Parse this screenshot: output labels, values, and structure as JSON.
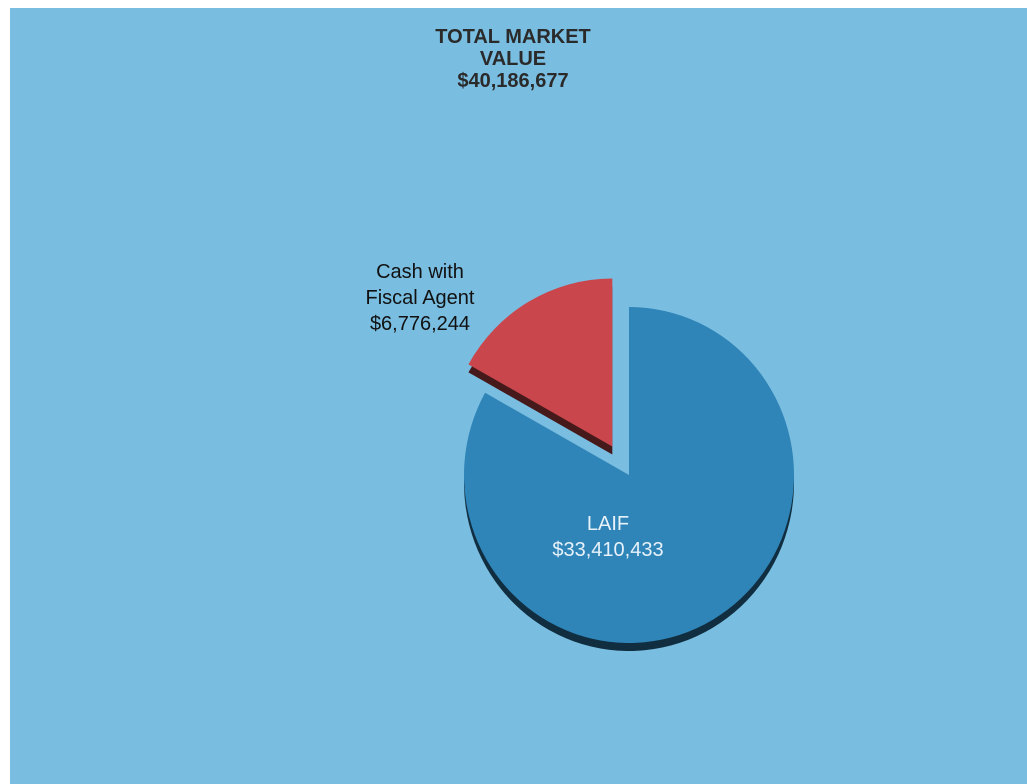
{
  "chart_data": {
    "type": "pie",
    "title_lines": [
      "TOTAL MARKET",
      "VALUE",
      "$40,186,677"
    ],
    "slices": [
      {
        "name": "LAIF",
        "label_lines": [
          "LAIF",
          "$33,410,433"
        ],
        "value": 33410433,
        "color": "#2f84b8",
        "exploded": false
      },
      {
        "name": "Cash with Fiscal Agent",
        "label_lines": [
          "Cash with",
          "Fiscal Agent",
          "$6,776,244"
        ],
        "value": 6776244,
        "color": "#c9474c",
        "exploded": true
      }
    ],
    "background": "#79bde0"
  }
}
